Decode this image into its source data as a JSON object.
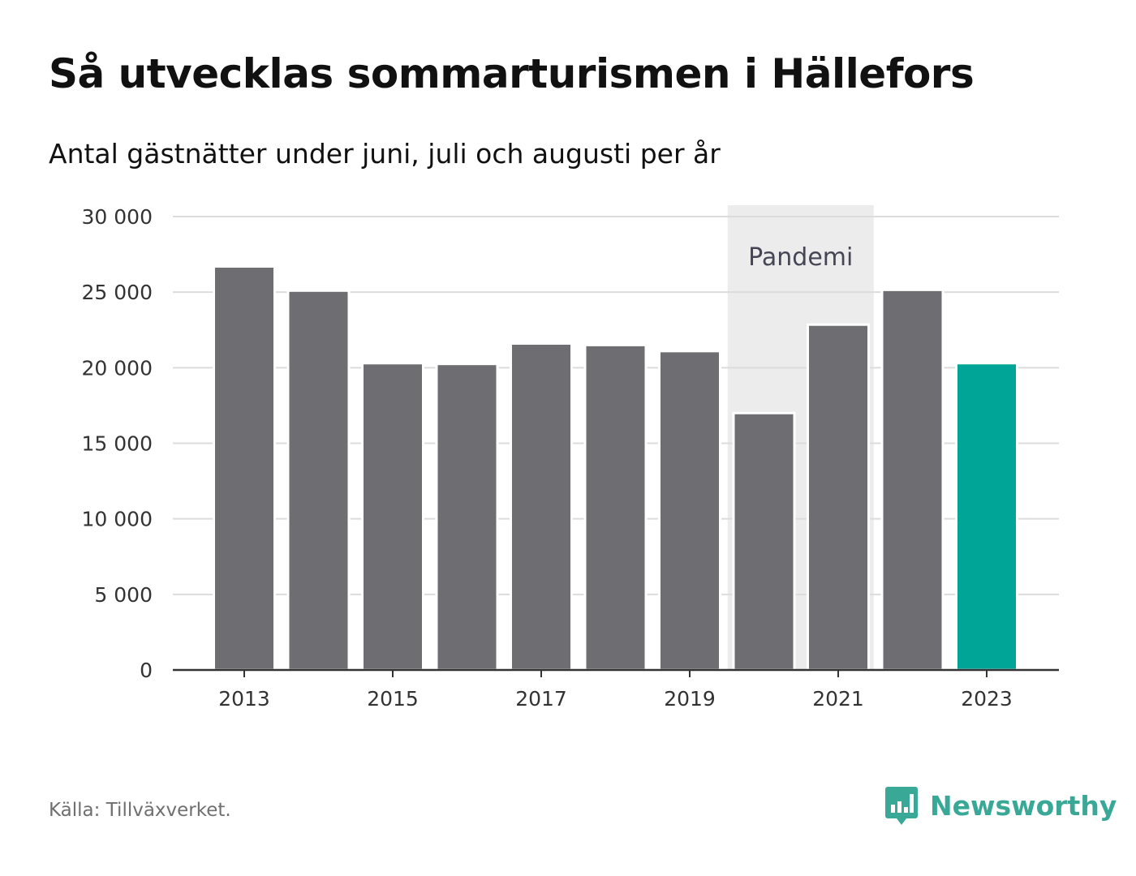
{
  "header": {
    "title": "Så utvecklas sommarturismen i Hällefors",
    "subtitle": "Antal gästnätter under juni, juli och augusti per år"
  },
  "footer": {
    "source": "Källa: Tillväxverket.",
    "brand": "Newsworthy",
    "brand_icon": "bar-chart-speech-bubble-icon"
  },
  "colors": {
    "bar": "#6e6d72",
    "highlight": "#00a598",
    "band": "#ececec",
    "grid": "#dcdcdc",
    "axis": "#333333",
    "brand": "#3aa897"
  },
  "chart_data": {
    "type": "bar",
    "title": "Så utvecklas sommarturismen i Hällefors",
    "subtitle": "Antal gästnätter under juni, juli och augusti per år",
    "xlabel": "",
    "ylabel": "",
    "categories": [
      "2013",
      "2014",
      "2015",
      "2016",
      "2017",
      "2018",
      "2019",
      "2020",
      "2021",
      "2022",
      "2023"
    ],
    "values": [
      26700,
      25100,
      20300,
      20250,
      21600,
      21500,
      21100,
      17000,
      22850,
      25150,
      20300
    ],
    "highlight_category": "2023",
    "ylim": [
      0,
      30000
    ],
    "yticks": [
      0,
      5000,
      10000,
      15000,
      20000,
      25000,
      30000
    ],
    "ytick_labels": [
      "0",
      "5 000",
      "10 000",
      "15 000",
      "20 000",
      "25 000",
      "30 000"
    ],
    "xtick_labels": [
      "2013",
      "2015",
      "2017",
      "2019",
      "2021",
      "2023"
    ],
    "grid": true,
    "legend": "none",
    "annotation": {
      "label": "Pandemi",
      "from": "2020",
      "to": "2021"
    }
  }
}
